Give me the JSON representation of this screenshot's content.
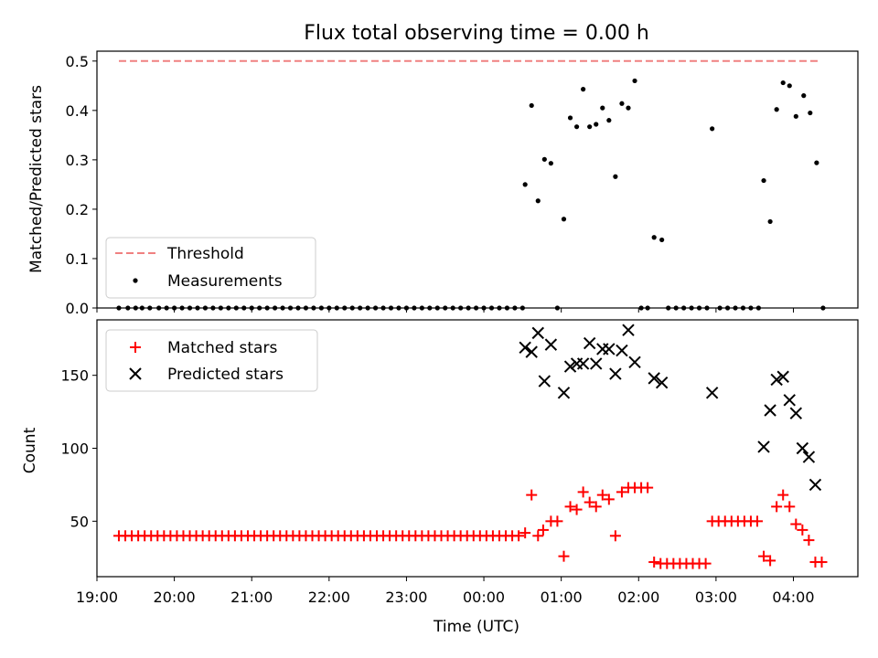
{
  "chart_data": [
    {
      "type": "scatter",
      "title": "Flux total observing time = 0.00 h",
      "xlabel": "",
      "ylabel": "Matched/Predicted stars",
      "xlim": [
        "19:00",
        "04:50"
      ],
      "ylim": [
        0,
        0.52
      ],
      "yticks": [
        0.0,
        0.1,
        0.2,
        0.3,
        0.4,
        0.5
      ],
      "yticklabels": [
        "0.0",
        "0.1",
        "0.2",
        "0.3",
        "0.4",
        "0.5"
      ],
      "xticks": [
        "19:00",
        "20:00",
        "21:00",
        "22:00",
        "23:00",
        "00:00",
        "01:00",
        "02:00",
        "03:00",
        "04:00"
      ],
      "legend_position": "lower-left",
      "grid": false,
      "threshold": {
        "name": "Threshold",
        "value": 0.5,
        "x_start": "19:17",
        "x_end": "04:20",
        "color": "#f08080"
      },
      "series": [
        {
          "name": "Measurements",
          "color": "#000000",
          "points": [
            [
              "19:17",
              0.0
            ],
            [
              "19:24",
              0.0
            ],
            [
              "19:30",
              0.0
            ],
            [
              "19:35",
              0.0
            ],
            [
              "19:41",
              0.0
            ],
            [
              "19:48",
              0.0
            ],
            [
              "19:54",
              0.0
            ],
            [
              "20:00",
              0.0
            ],
            [
              "20:06",
              0.0
            ],
            [
              "20:12",
              0.0
            ],
            [
              "20:18",
              0.0
            ],
            [
              "20:24",
              0.0
            ],
            [
              "20:30",
              0.0
            ],
            [
              "20:36",
              0.0
            ],
            [
              "20:42",
              0.0
            ],
            [
              "20:48",
              0.0
            ],
            [
              "20:54",
              0.0
            ],
            [
              "21:00",
              0.0
            ],
            [
              "21:06",
              0.0
            ],
            [
              "21:12",
              0.0
            ],
            [
              "21:18",
              0.0
            ],
            [
              "21:24",
              0.0
            ],
            [
              "21:30",
              0.0
            ],
            [
              "21:36",
              0.0
            ],
            [
              "21:42",
              0.0
            ],
            [
              "21:48",
              0.0
            ],
            [
              "21:54",
              0.0
            ],
            [
              "22:00",
              0.0
            ],
            [
              "22:06",
              0.0
            ],
            [
              "22:12",
              0.0
            ],
            [
              "22:18",
              0.0
            ],
            [
              "22:24",
              0.0
            ],
            [
              "22:30",
              0.0
            ],
            [
              "22:36",
              0.0
            ],
            [
              "22:42",
              0.0
            ],
            [
              "22:48",
              0.0
            ],
            [
              "22:54",
              0.0
            ],
            [
              "23:00",
              0.0
            ],
            [
              "23:06",
              0.0
            ],
            [
              "23:12",
              0.0
            ],
            [
              "23:18",
              0.0
            ],
            [
              "23:24",
              0.0
            ],
            [
              "23:30",
              0.0
            ],
            [
              "23:36",
              0.0
            ],
            [
              "23:42",
              0.0
            ],
            [
              "23:48",
              0.0
            ],
            [
              "23:54",
              0.0
            ],
            [
              "00:00",
              0.0
            ],
            [
              "00:06",
              0.0
            ],
            [
              "00:12",
              0.0
            ],
            [
              "00:18",
              0.0
            ],
            [
              "00:24",
              0.0
            ],
            [
              "00:30",
              0.0
            ],
            [
              "00:32",
              0.25
            ],
            [
              "00:37",
              0.41
            ],
            [
              "00:42",
              0.217
            ],
            [
              "00:47",
              0.301
            ],
            [
              "00:52",
              0.293
            ],
            [
              "00:57",
              0.0
            ],
            [
              "01:02",
              0.18
            ],
            [
              "01:07",
              0.385
            ],
            [
              "01:12",
              0.367
            ],
            [
              "01:17",
              0.443
            ],
            [
              "01:22",
              0.367
            ],
            [
              "01:27",
              0.372
            ],
            [
              "01:32",
              0.405
            ],
            [
              "01:37",
              0.38
            ],
            [
              "01:42",
              0.266
            ],
            [
              "01:47",
              0.414
            ],
            [
              "01:52",
              0.405
            ],
            [
              "01:57",
              0.46
            ],
            [
              "02:02",
              0.0
            ],
            [
              "02:07",
              0.0
            ],
            [
              "02:12",
              0.143
            ],
            [
              "02:18",
              0.138
            ],
            [
              "02:23",
              0.0
            ],
            [
              "02:29",
              0.0
            ],
            [
              "02:35",
              0.0
            ],
            [
              "02:41",
              0.0
            ],
            [
              "02:47",
              0.0
            ],
            [
              "02:53",
              0.0
            ],
            [
              "02:57",
              0.363
            ],
            [
              "03:03",
              0.0
            ],
            [
              "03:09",
              0.0
            ],
            [
              "03:15",
              0.0
            ],
            [
              "03:21",
              0.0
            ],
            [
              "03:27",
              0.0
            ],
            [
              "03:33",
              0.0
            ],
            [
              "03:37",
              0.258
            ],
            [
              "03:42",
              0.175
            ],
            [
              "03:47",
              0.402
            ],
            [
              "03:52",
              0.456
            ],
            [
              "03:57",
              0.45
            ],
            [
              "04:02",
              0.388
            ],
            [
              "04:08",
              0.43
            ],
            [
              "04:13",
              0.395
            ],
            [
              "04:18",
              0.294
            ],
            [
              "04:23",
              0.0
            ]
          ]
        }
      ]
    },
    {
      "type": "scatter",
      "title": "",
      "xlabel": "Time (UTC)",
      "ylabel": "Count",
      "xlim": [
        "19:00",
        "04:50"
      ],
      "ylim": [
        12,
        188
      ],
      "yticks": [
        50,
        100,
        150
      ],
      "yticklabels": [
        "50",
        "100",
        "150"
      ],
      "xticks": [
        "19:00",
        "20:00",
        "21:00",
        "22:00",
        "23:00",
        "00:00",
        "01:00",
        "02:00",
        "03:00",
        "04:00"
      ],
      "xticklabels": [
        "19:00",
        "20:00",
        "21:00",
        "22:00",
        "23:00",
        "00:00",
        "01:00",
        "02:00",
        "03:00",
        "04:00"
      ],
      "legend_position": "upper-left",
      "grid": false,
      "series": [
        {
          "name": "Matched stars",
          "marker": "+",
          "color": "#ff0000",
          "points": [
            [
              "19:17",
              40
            ],
            [
              "19:22",
              40
            ],
            [
              "19:27",
              40
            ],
            [
              "19:32",
              40
            ],
            [
              "19:37",
              40
            ],
            [
              "19:42",
              40
            ],
            [
              "19:47",
              40
            ],
            [
              "19:52",
              40
            ],
            [
              "19:57",
              40
            ],
            [
              "20:02",
              40
            ],
            [
              "20:07",
              40
            ],
            [
              "20:12",
              40
            ],
            [
              "20:17",
              40
            ],
            [
              "20:22",
              40
            ],
            [
              "20:27",
              40
            ],
            [
              "20:32",
              40
            ],
            [
              "20:37",
              40
            ],
            [
              "20:42",
              40
            ],
            [
              "20:47",
              40
            ],
            [
              "20:52",
              40
            ],
            [
              "20:57",
              40
            ],
            [
              "21:02",
              40
            ],
            [
              "21:07",
              40
            ],
            [
              "21:12",
              40
            ],
            [
              "21:17",
              40
            ],
            [
              "21:22",
              40
            ],
            [
              "21:27",
              40
            ],
            [
              "21:32",
              40
            ],
            [
              "21:37",
              40
            ],
            [
              "21:42",
              40
            ],
            [
              "21:47",
              40
            ],
            [
              "21:52",
              40
            ],
            [
              "21:57",
              40
            ],
            [
              "22:02",
              40
            ],
            [
              "22:07",
              40
            ],
            [
              "22:12",
              40
            ],
            [
              "22:17",
              40
            ],
            [
              "22:22",
              40
            ],
            [
              "22:27",
              40
            ],
            [
              "22:32",
              40
            ],
            [
              "22:37",
              40
            ],
            [
              "22:42",
              40
            ],
            [
              "22:47",
              40
            ],
            [
              "22:52",
              40
            ],
            [
              "22:57",
              40
            ],
            [
              "23:02",
              40
            ],
            [
              "23:07",
              40
            ],
            [
              "23:12",
              40
            ],
            [
              "23:17",
              40
            ],
            [
              "23:22",
              40
            ],
            [
              "23:27",
              40
            ],
            [
              "23:32",
              40
            ],
            [
              "23:37",
              40
            ],
            [
              "23:42",
              40
            ],
            [
              "23:47",
              40
            ],
            [
              "23:52",
              40
            ],
            [
              "23:57",
              40
            ],
            [
              "00:02",
              40
            ],
            [
              "00:07",
              40
            ],
            [
              "00:12",
              40
            ],
            [
              "00:17",
              40
            ],
            [
              "00:22",
              40
            ],
            [
              "00:27",
              40
            ],
            [
              "00:32",
              42
            ],
            [
              "00:37",
              68
            ],
            [
              "00:42",
              40
            ],
            [
              "00:46",
              44
            ],
            [
              "00:52",
              50
            ],
            [
              "00:57",
              50
            ],
            [
              "01:02",
              26
            ],
            [
              "01:07",
              60
            ],
            [
              "01:12",
              58
            ],
            [
              "01:17",
              70
            ],
            [
              "01:22",
              63
            ],
            [
              "01:27",
              60
            ],
            [
              "01:32",
              68
            ],
            [
              "01:37",
              65
            ],
            [
              "01:42",
              40
            ],
            [
              "01:47",
              70
            ],
            [
              "01:52",
              73
            ],
            [
              "01:57",
              73
            ],
            [
              "02:02",
              73
            ],
            [
              "02:07",
              73
            ],
            [
              "02:12",
              22
            ],
            [
              "02:17",
              21
            ],
            [
              "02:22",
              21
            ],
            [
              "02:27",
              21
            ],
            [
              "02:32",
              21
            ],
            [
              "02:37",
              21
            ],
            [
              "02:42",
              21
            ],
            [
              "02:47",
              21
            ],
            [
              "02:52",
              21
            ],
            [
              "02:57",
              50
            ],
            [
              "03:02",
              50
            ],
            [
              "03:07",
              50
            ],
            [
              "03:12",
              50
            ],
            [
              "03:17",
              50
            ],
            [
              "03:22",
              50
            ],
            [
              "03:27",
              50
            ],
            [
              "03:32",
              50
            ],
            [
              "03:37",
              26
            ],
            [
              "03:42",
              23
            ],
            [
              "03:47",
              60
            ],
            [
              "03:52",
              68
            ],
            [
              "03:57",
              60
            ],
            [
              "04:02",
              48
            ],
            [
              "04:07",
              44
            ],
            [
              "04:12",
              37
            ],
            [
              "04:17",
              22
            ],
            [
              "04:22",
              22
            ]
          ]
        },
        {
          "name": "Predicted stars",
          "marker": "x",
          "color": "#000000",
          "points": [
            [
              "00:32",
              169
            ],
            [
              "00:37",
              166
            ],
            [
              "00:42",
              179
            ],
            [
              "00:47",
              146
            ],
            [
              "00:52",
              171
            ],
            [
              "01:02",
              138
            ],
            [
              "01:07",
              156
            ],
            [
              "01:12",
              158
            ],
            [
              "01:17",
              158
            ],
            [
              "01:22",
              172
            ],
            [
              "01:27",
              158
            ],
            [
              "01:32",
              168
            ],
            [
              "01:37",
              168
            ],
            [
              "01:42",
              151
            ],
            [
              "01:47",
              167
            ],
            [
              "01:52",
              181
            ],
            [
              "01:57",
              159
            ],
            [
              "02:12",
              148
            ],
            [
              "02:18",
              145
            ],
            [
              "02:57",
              138
            ],
            [
              "03:37",
              101
            ],
            [
              "03:42",
              126
            ],
            [
              "03:47",
              147
            ],
            [
              "03:52",
              149
            ],
            [
              "03:57",
              133
            ],
            [
              "04:02",
              124
            ],
            [
              "04:07",
              100
            ],
            [
              "04:12",
              94
            ],
            [
              "04:17",
              75
            ]
          ]
        }
      ]
    }
  ]
}
